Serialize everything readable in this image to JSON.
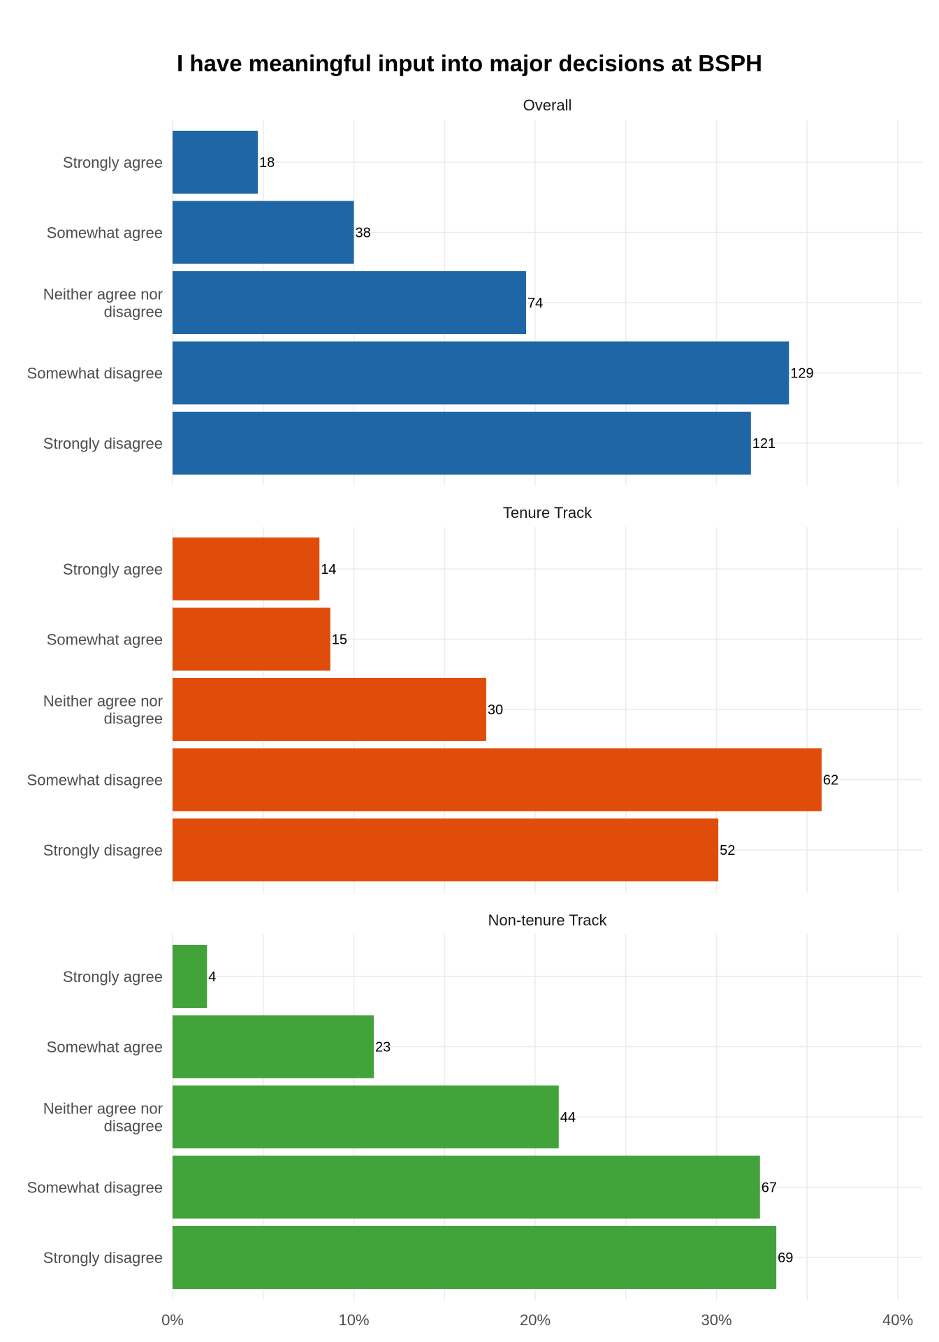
{
  "chart_data": {
    "type": "bar",
    "orientation": "horizontal",
    "title": "I have meaningful input into major decisions at BSPH",
    "x_axis": {
      "min": 0,
      "max": 0.4,
      "ticks": [
        0,
        0.1,
        0.2,
        0.3,
        0.4
      ],
      "tick_labels": [
        "0%",
        "10%",
        "20%",
        "30%",
        "40%"
      ]
    },
    "grid": true,
    "categories": [
      [
        "Strongly agree"
      ],
      [
        "Somewhat agree"
      ],
      [
        "Neither agree nor",
        "disagree"
      ],
      [
        "Somewhat disagree"
      ],
      [
        "Strongly disagree"
      ]
    ],
    "panels": [
      {
        "title": "Overall",
        "color": "#1f66a6",
        "counts": [
          18,
          38,
          74,
          129,
          121
        ],
        "shares": [
          0.047,
          0.1,
          0.195,
          0.34,
          0.319
        ]
      },
      {
        "title": "Tenure Track",
        "color": "#e04c0a",
        "counts": [
          14,
          15,
          30,
          62,
          52
        ],
        "shares": [
          0.081,
          0.087,
          0.173,
          0.358,
          0.301
        ]
      },
      {
        "title": "Non-tenure Track",
        "color": "#41a33a",
        "counts": [
          4,
          23,
          44,
          67,
          69
        ],
        "shares": [
          0.019,
          0.111,
          0.213,
          0.324,
          0.333
        ]
      }
    ]
  }
}
